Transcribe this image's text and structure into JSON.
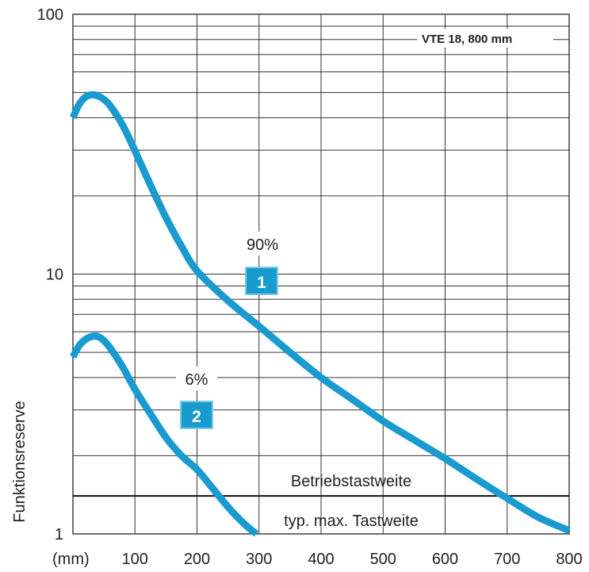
{
  "chart_data": {
    "type": "line",
    "title": "",
    "xlabel": "",
    "ylabel": "Funktionsreserve",
    "x_unit_label": "(mm)",
    "xlim": [
      0,
      800
    ],
    "ylim": [
      1,
      100
    ],
    "y_scale": "log",
    "grid": true,
    "x_ticks": [
      100,
      200,
      300,
      400,
      500,
      600,
      700,
      800
    ],
    "y_ticks": [
      1,
      10,
      100
    ],
    "legend": "VTE 18, 800 mm",
    "legend_position": "top-right",
    "series": [
      {
        "marker": "1",
        "label": "90%",
        "color": "#1a9bd0",
        "x": [
          0,
          10,
          20,
          30,
          40,
          50,
          60,
          80,
          100,
          125,
          150,
          175,
          200,
          250,
          300,
          350,
          400,
          450,
          500,
          550,
          600,
          650,
          700,
          750,
          800
        ],
        "y": [
          40,
          45,
          48,
          49,
          48.5,
          47,
          44.5,
          37.5,
          29.8,
          22,
          16.5,
          12.8,
          10.3,
          7.9,
          6.3,
          5,
          4,
          3.3,
          2.72,
          2.3,
          1.95,
          1.63,
          1.37,
          1.16,
          1.03
        ]
      },
      {
        "marker": "2",
        "label": "6%",
        "color": "#1a9bd0",
        "x": [
          0,
          10,
          20,
          30,
          40,
          50,
          60,
          80,
          100,
          125,
          150,
          175,
          200,
          225,
          250,
          275,
          300
        ],
        "y": [
          4.8,
          5.3,
          5.6,
          5.75,
          5.75,
          5.55,
          5.2,
          4.4,
          3.6,
          2.9,
          2.35,
          2.0,
          1.77,
          1.5,
          1.27,
          1.1,
          0.98
        ]
      }
    ],
    "reference_lines": [
      {
        "y": 1.4,
        "label_above": "Betriebstastweite",
        "label_below": "typ. max. Tastweite"
      }
    ]
  }
}
